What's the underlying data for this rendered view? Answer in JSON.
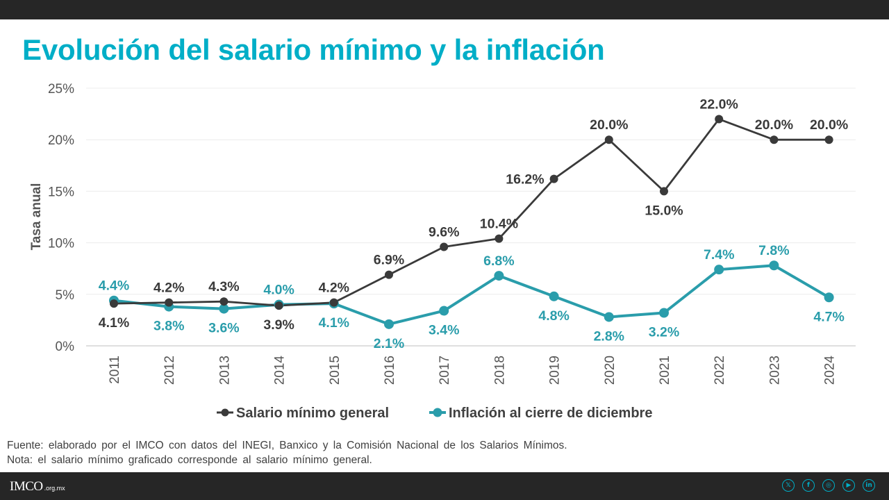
{
  "header": {
    "title": "Evolución del salario mínimo y la inflación"
  },
  "colors": {
    "accent": "#00aec7",
    "series_dark": "#3a3a3a",
    "series_teal": "#2a9dab",
    "bar": "#262626"
  },
  "chart_data": {
    "type": "line",
    "title": "Evolución del salario mínimo y la inflación",
    "xlabel": "",
    "ylabel": "Tasa anual",
    "ylim": [
      0,
      25
    ],
    "yticks": [
      "0%",
      "5%",
      "10%",
      "15%",
      "20%",
      "25%"
    ],
    "grid": true,
    "legend_position": "bottom",
    "x": [
      "2011",
      "2012",
      "2013",
      "2014",
      "2015",
      "2016",
      "2017",
      "2018",
      "2019",
      "2020",
      "2021",
      "2022",
      "2023",
      "2024"
    ],
    "series": [
      {
        "name": "Salario mínimo general",
        "color": "#3a3a3a",
        "values": [
          4.1,
          4.2,
          4.3,
          3.9,
          4.2,
          6.9,
          9.6,
          10.4,
          16.2,
          20.0,
          15.0,
          22.0,
          20.0,
          20.0
        ],
        "labels": [
          "4.1%",
          "4.2%",
          "4.3%",
          "3.9%",
          "4.2%",
          "6.9%",
          "9.6%",
          "10.4%",
          "16.2%",
          "20.0%",
          "15.0%",
          "22.0%",
          "20.0%",
          "20.0%"
        ],
        "label_side": [
          "below",
          "above",
          "above",
          "below",
          "above",
          "above",
          "above",
          "above",
          "left",
          "above",
          "below",
          "above",
          "above",
          "above"
        ]
      },
      {
        "name": "Inflación al cierre de diciembre",
        "color": "#2a9dab",
        "values": [
          4.4,
          3.8,
          3.6,
          4.0,
          4.1,
          2.1,
          3.4,
          6.8,
          4.8,
          2.8,
          3.2,
          7.4,
          7.8,
          4.7
        ],
        "labels": [
          "4.4%",
          "3.8%",
          "3.6%",
          "4.0%",
          "4.1%",
          "2.1%",
          "3.4%",
          "6.8%",
          "4.8%",
          "2.8%",
          "3.2%",
          "7.4%",
          "7.8%",
          "4.7%"
        ],
        "label_side": [
          "above",
          "below",
          "below",
          "above",
          "below",
          "below",
          "below",
          "above",
          "below",
          "below",
          "below",
          "above",
          "above",
          "below"
        ]
      }
    ]
  },
  "footnotes": {
    "source": "Fuente: elaborado por el IMCO con datos del INEGI, Banxico y la Comisión Nacional de los Salarios Mínimos.",
    "note": "Nota: el salario mínimo graficado corresponde al salario mínimo general."
  },
  "footer": {
    "logo": "IMCO",
    "domain": ".org.mx",
    "social": [
      {
        "name": "x-icon",
        "glyph": "𝕏"
      },
      {
        "name": "facebook-icon",
        "glyph": "f"
      },
      {
        "name": "instagram-icon",
        "glyph": "◎"
      },
      {
        "name": "youtube-icon",
        "glyph": "▶"
      },
      {
        "name": "linkedin-icon",
        "glyph": "in"
      }
    ]
  }
}
